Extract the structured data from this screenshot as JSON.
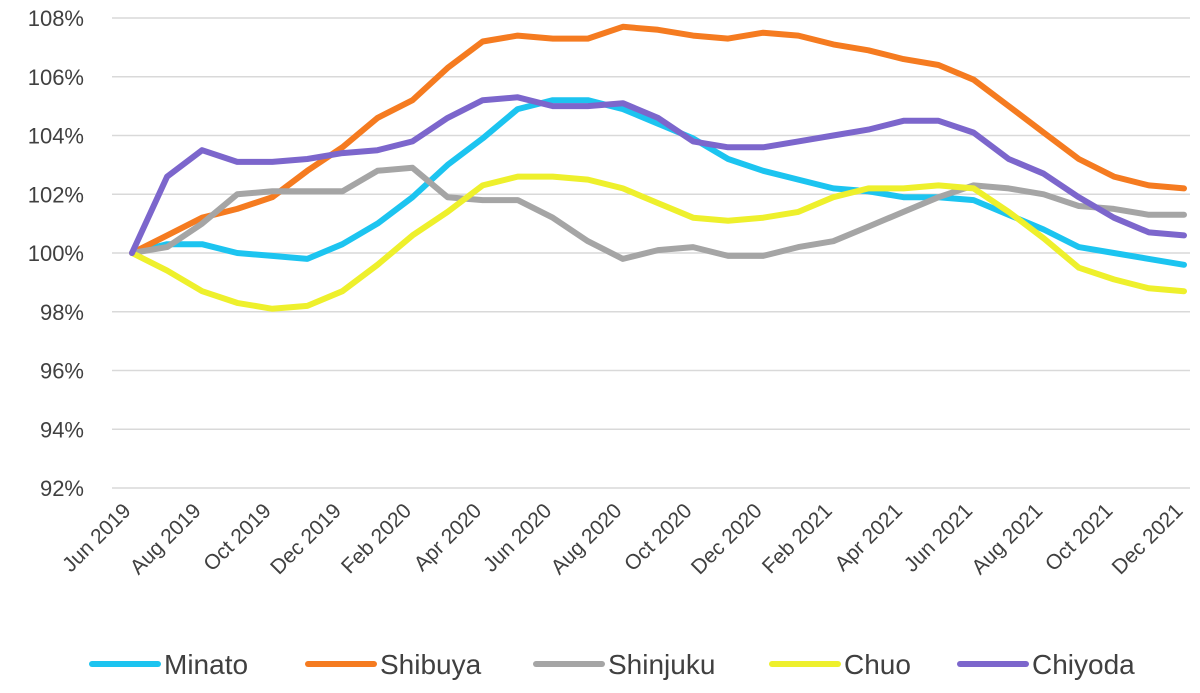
{
  "chart_data": {
    "type": "line",
    "title": "",
    "xlabel": "",
    "ylabel": "",
    "ylim": [
      92,
      108
    ],
    "ytick_step": 2,
    "ytick_suffix": "%",
    "grid": true,
    "legend_position": "bottom",
    "x_tick_labels": [
      "Jun 2019",
      "Aug 2019",
      "Oct 2019",
      "Dec 2019",
      "Feb 2020",
      "Apr 2020",
      "Jun 2020",
      "Aug 2020",
      "Oct 2020",
      "Dec 2020",
      "Feb 2021",
      "Apr 2021",
      "Jun 2021",
      "Aug 2021",
      "Oct 2021",
      "Dec 2021"
    ],
    "x": [
      "Jun 2019",
      "Jul 2019",
      "Aug 2019",
      "Sep 2019",
      "Oct 2019",
      "Nov 2019",
      "Dec 2019",
      "Jan 2020",
      "Feb 2020",
      "Mar 2020",
      "Apr 2020",
      "May 2020",
      "Jun 2020",
      "Jul 2020",
      "Aug 2020",
      "Sep 2020",
      "Oct 2020",
      "Nov 2020",
      "Dec 2020",
      "Jan 2021",
      "Feb 2021",
      "Mar 2021",
      "Apr 2021",
      "May 2021",
      "Jun 2021",
      "Jul 2021",
      "Aug 2021",
      "Sep 2021",
      "Oct 2021",
      "Nov 2021",
      "Dec 2021"
    ],
    "series": [
      {
        "name": "Minato",
        "color": "#1cc4f0",
        "values": [
          100.0,
          100.3,
          100.3,
          100.0,
          99.9,
          99.8,
          100.3,
          101.0,
          101.9,
          103.0,
          103.9,
          104.9,
          105.2,
          105.2,
          104.9,
          104.4,
          103.9,
          103.2,
          102.8,
          102.5,
          102.2,
          102.1,
          101.9,
          101.9,
          101.8,
          101.3,
          100.8,
          100.2,
          100.0,
          99.8,
          99.6
        ]
      },
      {
        "name": "Shibuya",
        "color": "#f57b20",
        "values": [
          100.0,
          100.6,
          101.2,
          101.5,
          101.9,
          102.8,
          103.6,
          104.6,
          105.2,
          106.3,
          107.2,
          107.4,
          107.3,
          107.3,
          107.7,
          107.6,
          107.4,
          107.3,
          107.5,
          107.4,
          107.1,
          106.9,
          106.6,
          106.4,
          105.9,
          105.0,
          104.1,
          103.2,
          102.6,
          102.3,
          102.2
        ]
      },
      {
        "name": "Shinjuku",
        "color": "#a5a5a5",
        "values": [
          100.0,
          100.2,
          101.0,
          102.0,
          102.1,
          102.1,
          102.1,
          102.8,
          102.9,
          101.9,
          101.8,
          101.8,
          101.2,
          100.4,
          99.8,
          100.1,
          100.2,
          99.9,
          99.9,
          100.2,
          100.4,
          100.9,
          101.4,
          101.9,
          102.3,
          102.2,
          102.0,
          101.6,
          101.5,
          101.3,
          101.3
        ]
      },
      {
        "name": "Chuo",
        "color": "#eef02c",
        "values": [
          100.0,
          99.4,
          98.7,
          98.3,
          98.1,
          98.2,
          98.7,
          99.6,
          100.6,
          101.4,
          102.3,
          102.6,
          102.6,
          102.5,
          102.2,
          101.7,
          101.2,
          101.1,
          101.2,
          101.4,
          101.9,
          102.2,
          102.2,
          102.3,
          102.2,
          101.4,
          100.5,
          99.5,
          99.1,
          98.8,
          98.7
        ]
      },
      {
        "name": "Chiyoda",
        "color": "#7c66cc",
        "values": [
          100.0,
          102.6,
          103.5,
          103.1,
          103.1,
          103.2,
          103.4,
          103.5,
          103.8,
          104.6,
          105.2,
          105.3,
          105.0,
          105.0,
          105.1,
          104.6,
          103.8,
          103.6,
          103.6,
          103.8,
          104.0,
          104.2,
          104.5,
          104.5,
          104.1,
          103.2,
          102.7,
          101.9,
          101.2,
          100.7,
          100.6
        ]
      }
    ]
  }
}
